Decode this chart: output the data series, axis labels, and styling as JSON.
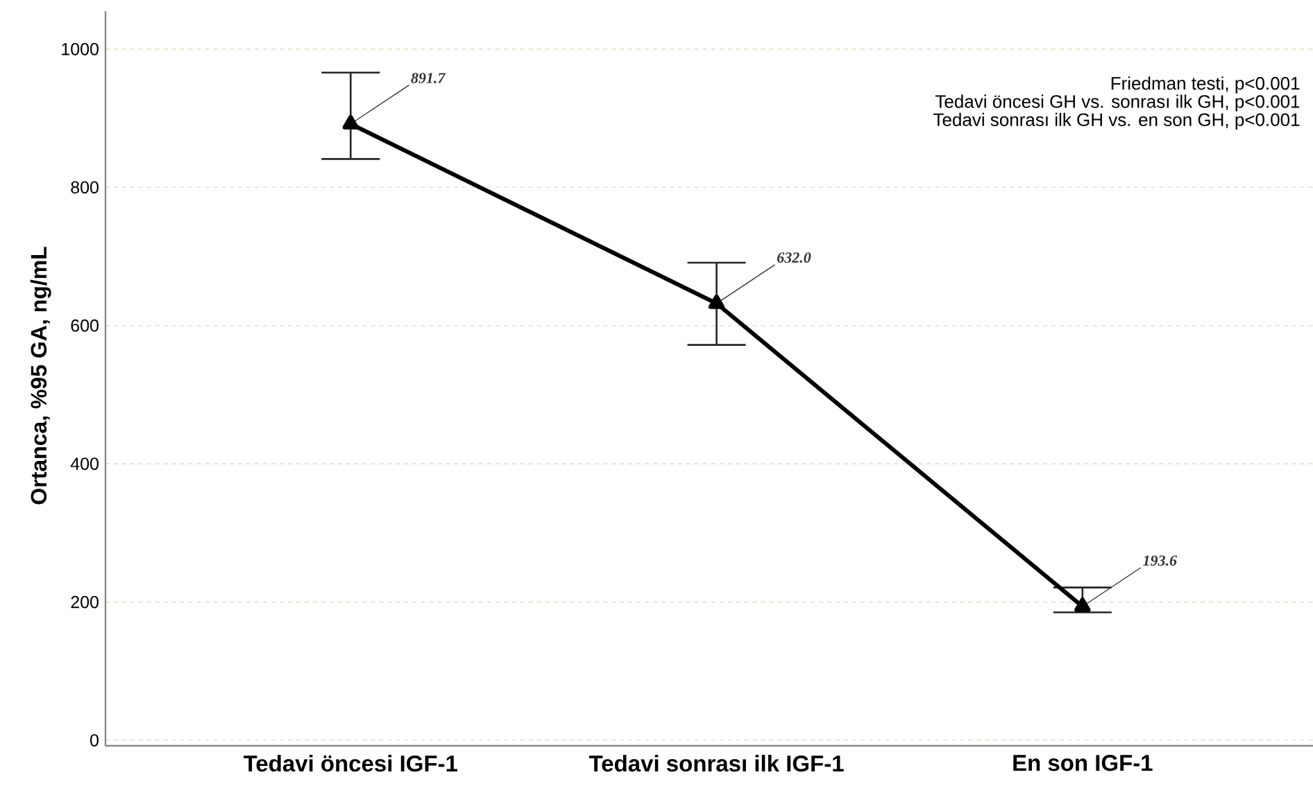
{
  "chart_data": {
    "type": "line",
    "ylabel": "Ortanca, %95 GA, ng/mL",
    "categories": [
      "Tedavi öncesi IGF-1",
      "Tedavi sonrası ilk IGF-1",
      "En son IGF-1"
    ],
    "series": [
      {
        "color": "#000000",
        "values": [
          891.7,
          632.0,
          193.6
        ],
        "errors": [
          [
            841,
            966
          ],
          [
            572,
            691
          ],
          [
            185,
            221
          ]
        ],
        "value_labels": [
          "891.7",
          "632.0",
          "193.6"
        ]
      }
    ],
    "marker": "triangle",
    "line_style": "solid",
    "grid": "y",
    "ylim": [
      -8,
      1055
    ],
    "yticks": [
      0,
      200,
      400,
      600,
      800,
      1000
    ],
    "annotations": [
      "Friedman testi, p<0.001",
      "Tedavi öncesi GH vs. sonrası ilk GH, p<0.001",
      "Tedavi sonrası ilk GH vs. en son GH, p<0.001"
    ]
  }
}
